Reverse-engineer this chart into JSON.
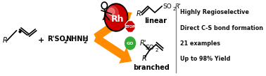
{
  "bg_color": "#ffffff",
  "bullet_points": [
    "Highly Regioselective",
    "Direct C-S bond formation",
    "21 examples",
    "Up to 98% Yield"
  ],
  "arrow_color": "#FF8C00",
  "divider_color": "#888888",
  "rh_color_outer": "#000000",
  "rh_color_main": "#cc0000",
  "rh_color_highlight": "#ff8888",
  "rh_color_bright": "#ffcccc",
  "stop_color": "#cc0000",
  "go_color": "#33aa33",
  "label_linear": "linear",
  "label_branched": "branched"
}
